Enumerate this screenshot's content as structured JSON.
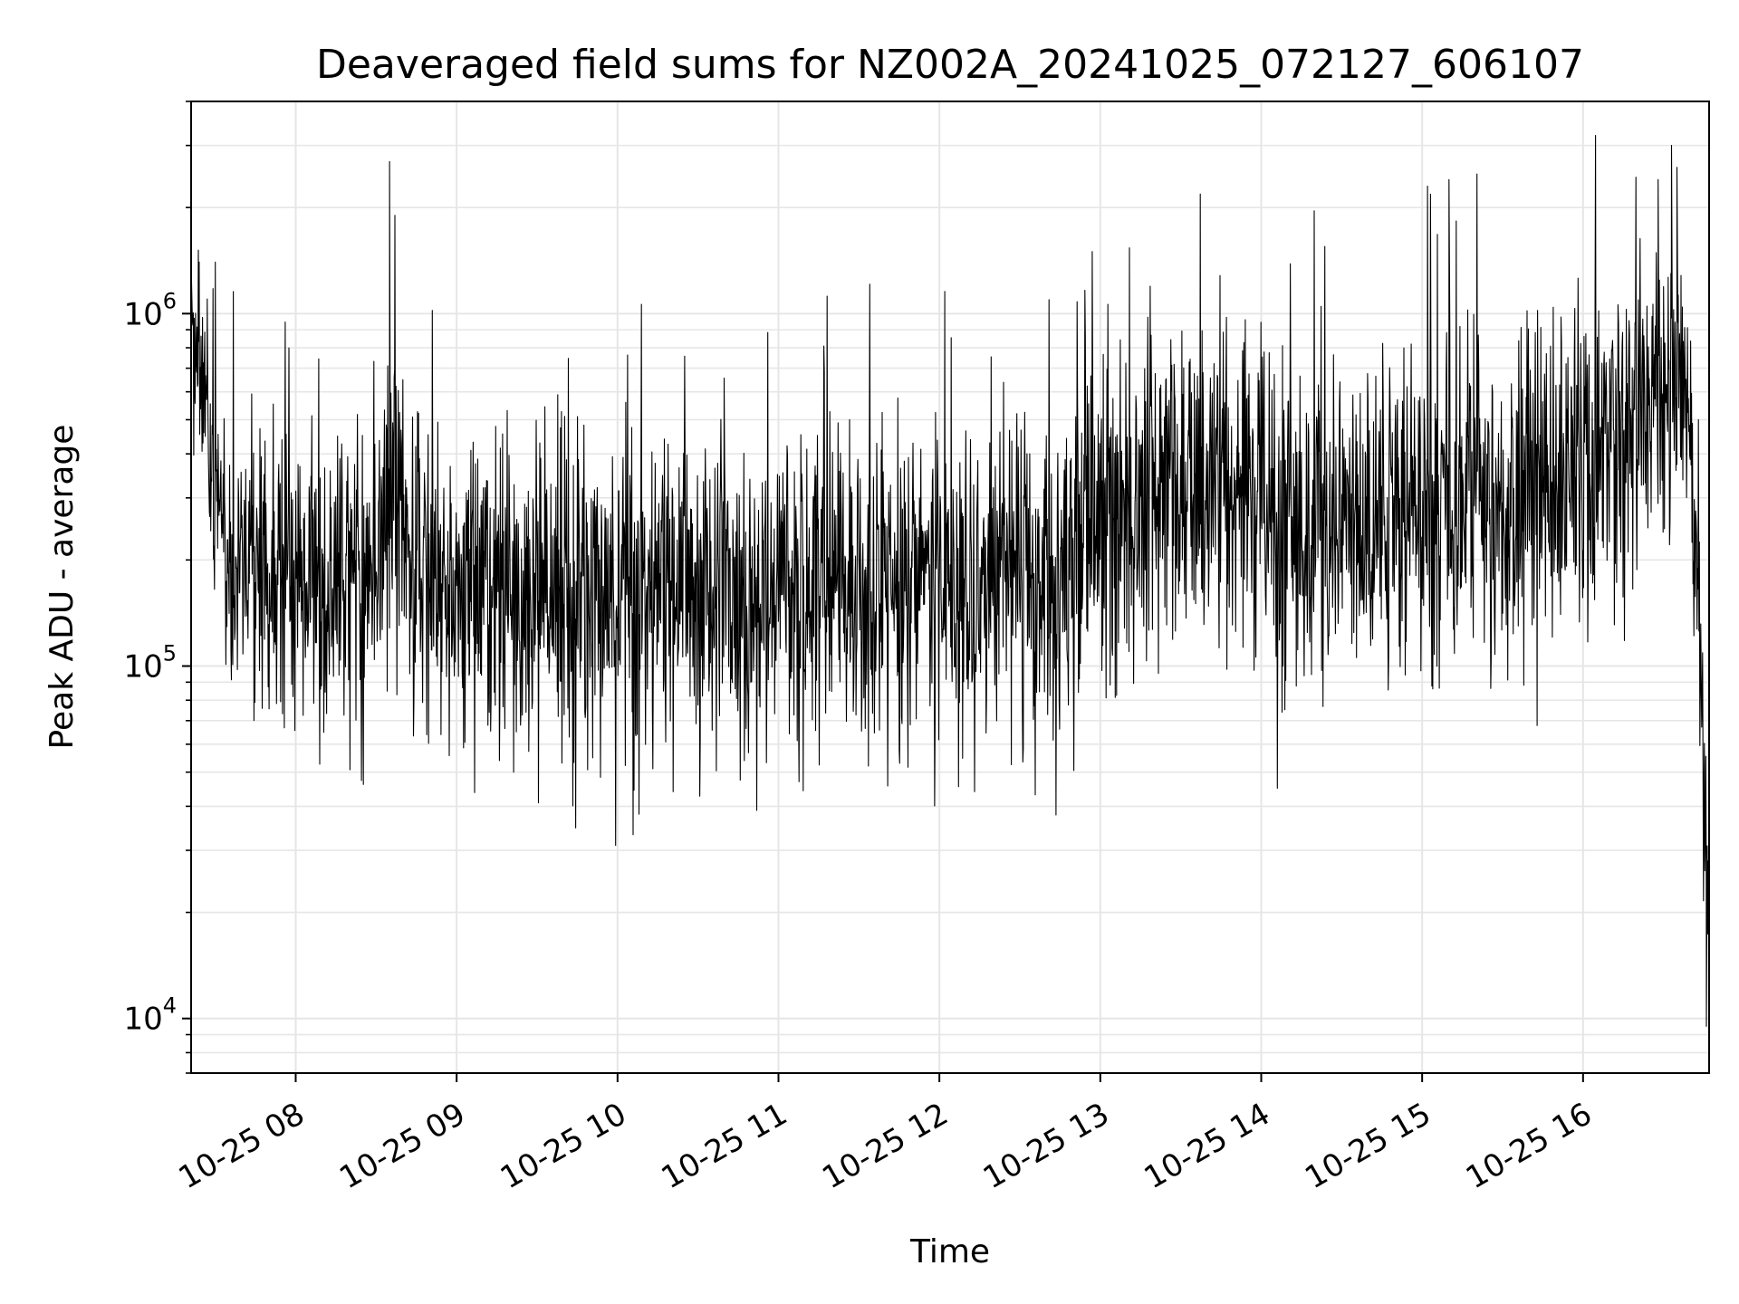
{
  "chart_data": {
    "type": "line",
    "title": "Deaveraged field sums for NZ002A_20241025_072127_606107",
    "xlabel": "Time",
    "ylabel": "Peak ADU - average",
    "yscale": "log",
    "ylim": [
      7000,
      4000000
    ],
    "xlim": [
      "2024-10-25 07:21",
      "2024-10-25 16:47"
    ],
    "grid": true,
    "colors": {
      "line": "#000000",
      "grid": "#e6e6e6",
      "frame": "#000000"
    },
    "x_ticks": [
      {
        "time": "2024-10-25 08:00",
        "label": "10-25 08"
      },
      {
        "time": "2024-10-25 09:00",
        "label": "10-25 09"
      },
      {
        "time": "2024-10-25 10:00",
        "label": "10-25 10"
      },
      {
        "time": "2024-10-25 11:00",
        "label": "10-25 11"
      },
      {
        "time": "2024-10-25 12:00",
        "label": "10-25 12"
      },
      {
        "time": "2024-10-25 13:00",
        "label": "10-25 13"
      },
      {
        "time": "2024-10-25 14:00",
        "label": "10-25 14"
      },
      {
        "time": "2024-10-25 15:00",
        "label": "10-25 15"
      },
      {
        "time": "2024-10-25 16:00",
        "label": "10-25 16"
      }
    ],
    "y_ticks": [
      {
        "value": 10000,
        "base": "10",
        "exp": "4"
      },
      {
        "value": 100000,
        "base": "10",
        "exp": "5"
      },
      {
        "value": 1000000,
        "base": "10",
        "exp": "6"
      }
    ],
    "series": [
      {
        "times": [
          "2024-10-25 07:22",
          "2024-10-25 07:25",
          "2024-10-25 07:28",
          "2024-10-25 07:31",
          "2024-10-25 07:34",
          "2024-10-25 07:40",
          "2024-10-25 07:50",
          "2024-10-25 08:00",
          "2024-10-25 08:15",
          "2024-10-25 08:30",
          "2024-10-25 08:35",
          "2024-10-25 08:45",
          "2024-10-25 09:00",
          "2024-10-25 09:20",
          "2024-10-25 09:40",
          "2024-10-25 10:00",
          "2024-10-25 10:10",
          "2024-10-25 10:30",
          "2024-10-25 11:00",
          "2024-10-25 11:30",
          "2024-10-25 12:00",
          "2024-10-25 12:30",
          "2024-10-25 12:45",
          "2024-10-25 13:00",
          "2024-10-25 13:30",
          "2024-10-25 14:00",
          "2024-10-25 14:06",
          "2024-10-25 14:30",
          "2024-10-25 15:00",
          "2024-10-25 15:10",
          "2024-10-25 15:30",
          "2024-10-25 16:00",
          "2024-10-25 16:15",
          "2024-10-25 16:30",
          "2024-10-25 16:36",
          "2024-10-25 16:40",
          "2024-10-25 16:42",
          "2024-10-25 16:44",
          "2024-10-25 16:45",
          "2024-10-25 16:46"
        ],
        "center": [
          700000,
          800000,
          400000,
          250000,
          200000,
          200000,
          180000,
          200000,
          180000,
          170000,
          300000,
          180000,
          170000,
          180000,
          160000,
          150000,
          160000,
          160000,
          160000,
          170000,
          170000,
          170000,
          170000,
          300000,
          350000,
          300000,
          250000,
          250000,
          300000,
          320000,
          280000,
          400000,
          500000,
          600000,
          800000,
          500000,
          200000,
          100000,
          50000,
          30000
        ],
        "spread": [
          1.8,
          1.8,
          1.9,
          2.2,
          2.3,
          2.4,
          2.4,
          2.3,
          2.3,
          2.4,
          2.5,
          2.4,
          2.4,
          2.5,
          2.6,
          2.7,
          2.7,
          2.6,
          2.5,
          2.5,
          2.5,
          2.6,
          2.7,
          2.6,
          2.5,
          2.7,
          2.8,
          2.7,
          2.7,
          2.8,
          2.7,
          2.6,
          2.5,
          2.3,
          2.1,
          2.1,
          2.0,
          1.8,
          1.9,
          2.0
        ],
        "peaks": [
          {
            "time": "2024-10-25 07:21",
            "value": 1400000
          },
          {
            "time": "2024-10-25 07:24",
            "value": 1400000
          },
          {
            "time": "2024-10-25 07:27",
            "value": 1100000
          },
          {
            "time": "2024-10-25 07:30",
            "value": 1400000
          },
          {
            "time": "2024-10-25 08:35",
            "value": 2700000
          },
          {
            "time": "2024-10-25 08:37",
            "value": 1900000
          },
          {
            "time": "2024-10-25 10:08",
            "value": 38000
          },
          {
            "time": "2024-10-25 12:57",
            "value": 1500000
          },
          {
            "time": "2024-10-25 14:06",
            "value": 45000
          },
          {
            "time": "2024-10-25 15:02",
            "value": 2300000
          },
          {
            "time": "2024-10-25 15:10",
            "value": 2400000
          },
          {
            "time": "2024-10-25 16:28",
            "value": 2400000
          },
          {
            "time": "2024-10-25 16:33",
            "value": 3000000
          },
          {
            "time": "2024-10-25 16:35",
            "value": 2600000
          },
          {
            "time": "2024-10-25 16:46",
            "value": 9500
          }
        ]
      }
    ]
  }
}
